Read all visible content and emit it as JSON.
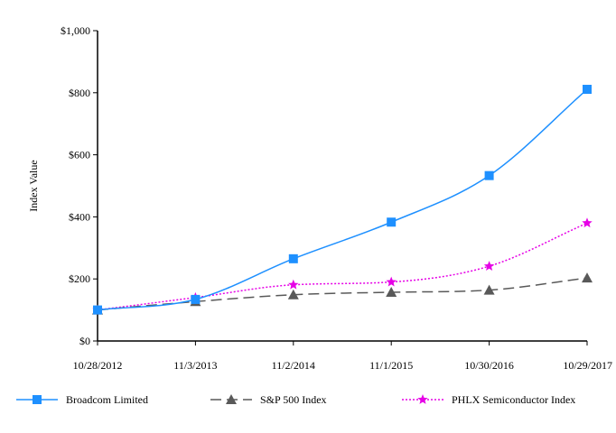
{
  "chart_data": {
    "type": "line",
    "title": "",
    "xlabel": "",
    "ylabel": "Index Value",
    "ylim": [
      0,
      1000
    ],
    "yticks": [
      {
        "value": 0,
        "label": "$0"
      },
      {
        "value": 200,
        "label": "$200"
      },
      {
        "value": 400,
        "label": "$400"
      },
      {
        "value": 600,
        "label": "$600"
      },
      {
        "value": 800,
        "label": "$800"
      },
      {
        "value": 1000,
        "label": "$1,000"
      }
    ],
    "categories": [
      "10/28/2012",
      "11/3/2013",
      "11/2/2014",
      "11/1/2015",
      "10/30/2016",
      "10/29/2017"
    ],
    "series": [
      {
        "name": "Broadcom Limited",
        "values": [
          100,
          134,
          265,
          383,
          533,
          811
        ],
        "color": "#1e90ff",
        "marker": "square",
        "dash": "solid"
      },
      {
        "name": "S&P 500 Index",
        "values": [
          100,
          127,
          149,
          157,
          164,
          203
        ],
        "color": "#595959",
        "marker": "triangle",
        "dash": "dash"
      },
      {
        "name": "PHLX Semiconductor Index",
        "values": [
          100,
          140,
          181,
          190,
          241,
          380
        ],
        "color": "#e600e6",
        "marker": "star",
        "dash": "dot"
      }
    ],
    "legend_position": "bottom",
    "grid": false
  }
}
